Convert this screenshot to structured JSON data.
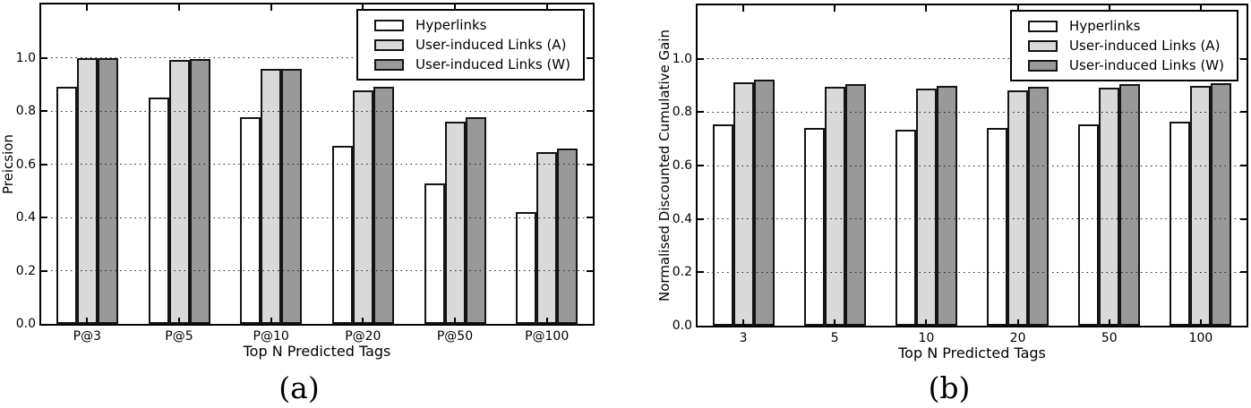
{
  "figure": {
    "caption_a": "(a)",
    "caption_b": "(b)"
  },
  "chart_data": [
    {
      "type": "bar",
      "panel": "a",
      "title": "",
      "categories": [
        "P@3",
        "P@5",
        "P@10",
        "P@20",
        "P@50",
        "P@100"
      ],
      "series": [
        {
          "name": "Hyperlinks",
          "color": "#ffffff",
          "values": [
            0.891,
            0.849,
            0.776,
            0.669,
            0.529,
            0.419
          ]
        },
        {
          "name": "User-induced Links (A)",
          "color": "#d9d9d9",
          "values": [
            1.0,
            0.991,
            0.957,
            0.878,
            0.758,
            0.646
          ]
        },
        {
          "name": "User-induced Links (W)",
          "color": "#999999",
          "values": [
            0.997,
            0.995,
            0.958,
            0.892,
            0.776,
            0.659
          ]
        }
      ],
      "xlabel": "Top N Predicted Tags",
      "ylabel": "Preicsion",
      "ylim": [
        0,
        1.2
      ],
      "yticks": [
        0.0,
        0.2,
        0.4,
        0.6,
        0.8,
        1.0
      ],
      "grid": "horizontal-dotted",
      "legend_position": "upper right",
      "caption": "(a)"
    },
    {
      "type": "bar",
      "panel": "b",
      "title": "",
      "categories": [
        "3",
        "5",
        "10",
        "20",
        "50",
        "100"
      ],
      "series": [
        {
          "name": "Hyperlinks",
          "color": "#ffffff",
          "values": [
            0.755,
            0.741,
            0.734,
            0.74,
            0.755,
            0.763
          ]
        },
        {
          "name": "User-induced Links (A)",
          "color": "#d9d9d9",
          "values": [
            0.913,
            0.895,
            0.887,
            0.882,
            0.893,
            0.9
          ]
        },
        {
          "name": "User-induced Links (W)",
          "color": "#999999",
          "values": [
            0.923,
            0.905,
            0.899,
            0.896,
            0.904,
            0.91
          ]
        }
      ],
      "xlabel": "Top N Predicted Tags",
      "ylabel": "Normalised Discounted Cumulative Gain",
      "ylim": [
        0,
        1.2
      ],
      "yticks": [
        0.0,
        0.2,
        0.4,
        0.6,
        0.8,
        1.0
      ],
      "grid": "horizontal-dotted",
      "legend_position": "upper right",
      "caption": "(b)"
    }
  ],
  "style": {
    "bar_edge_color": "#141414",
    "axis_color": "#000000",
    "grid_color": "#222222",
    "background": "#ffffff"
  }
}
